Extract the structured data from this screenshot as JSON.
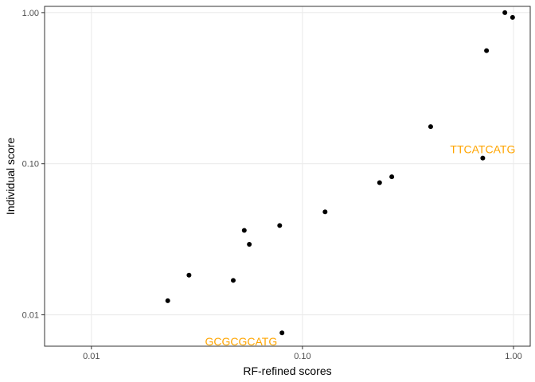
{
  "chart_data": {
    "type": "scatter",
    "xlabel": "RF-refined scores",
    "ylabel": "Individual score",
    "xscale": "log10",
    "yscale": "log10",
    "xlim": [
      0.006,
      1.2
    ],
    "ylim": [
      0.0062,
      1.1
    ],
    "xticks": [
      {
        "value": 0.01,
        "label": "0.01"
      },
      {
        "value": 0.1,
        "label": "0.10"
      },
      {
        "value": 1.0,
        "label": "1.00"
      }
    ],
    "yticks": [
      {
        "value": 0.01,
        "label": "0.01"
      },
      {
        "value": 0.1,
        "label": "0.10"
      },
      {
        "value": 1.0,
        "label": "1.00"
      }
    ],
    "grid": true,
    "point_color": "#000000",
    "annotation_color": "#FFA500",
    "points": [
      {
        "x": 0.023,
        "y": 0.0124
      },
      {
        "x": 0.029,
        "y": 0.0183
      },
      {
        "x": 0.047,
        "y": 0.0169
      },
      {
        "x": 0.053,
        "y": 0.0362
      },
      {
        "x": 0.056,
        "y": 0.0293
      },
      {
        "x": 0.078,
        "y": 0.039
      },
      {
        "x": 0.08,
        "y": 0.0076
      },
      {
        "x": 0.128,
        "y": 0.048
      },
      {
        "x": 0.232,
        "y": 0.075
      },
      {
        "x": 0.265,
        "y": 0.082
      },
      {
        "x": 0.405,
        "y": 0.176
      },
      {
        "x": 0.715,
        "y": 0.109
      },
      {
        "x": 0.745,
        "y": 0.56
      },
      {
        "x": 0.91,
        "y": 1.0
      },
      {
        "x": 0.99,
        "y": 0.93
      }
    ],
    "annotations": [
      {
        "text": "GCGCGCATG",
        "x": 0.08,
        "y": 0.0076,
        "anchor": "end"
      },
      {
        "text": "TTCATCATG",
        "x": 0.715,
        "y": 0.109,
        "anchor": "middle"
      }
    ]
  }
}
